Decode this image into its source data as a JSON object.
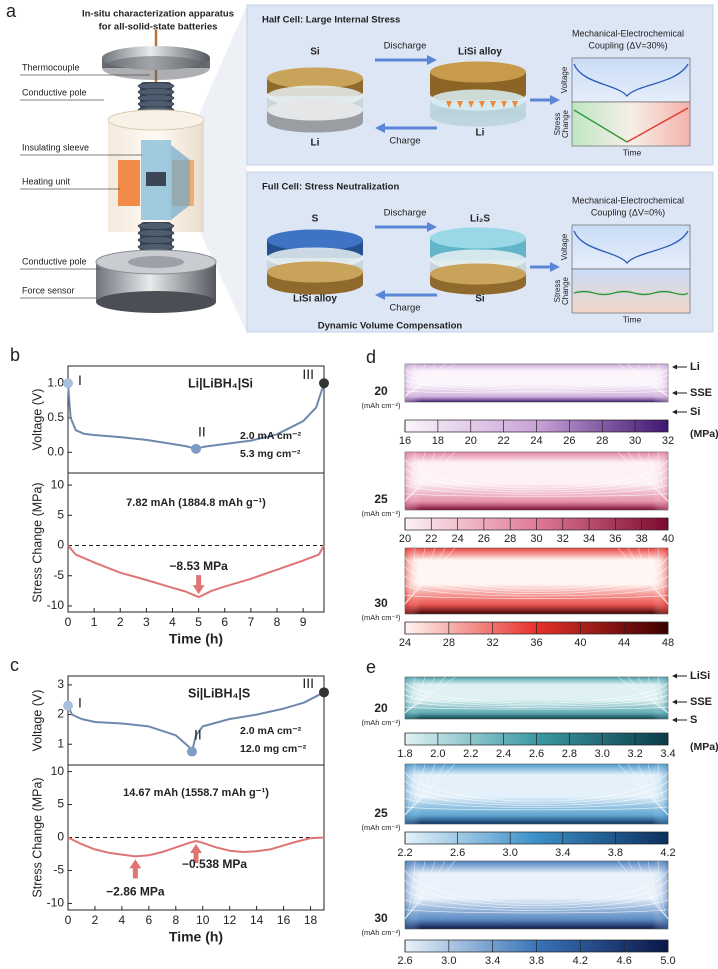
{
  "panel_a": {
    "label": "a",
    "title_lines": [
      "In-situ characterization apparatus",
      "for all-solid-state batteries"
    ],
    "parts": [
      "Thermocouple",
      "Conductive pole",
      "Insulating sleeve",
      "Heating unit",
      "Conductive pole",
      "Force sensor"
    ],
    "half_cell": {
      "title": "Half Cell: Large Internal Stress",
      "before_top": "Si",
      "before_bottom": "Li",
      "after_top": "LiSi alloy",
      "after_bottom": "Li",
      "forward": "Discharge",
      "backward": "Charge",
      "coupling_lines": [
        "Mechanical-Electrochemical",
        "Coupling (ΔV=30%)"
      ],
      "y_top": "Voltage",
      "y_bottom_lines": [
        "Stress",
        "Change"
      ],
      "x_label": "Time"
    },
    "full_cell": {
      "title": "Full Cell: Stress Neutralization",
      "before_top": "S",
      "before_bottom": "LiSi alloy",
      "after_top": "Li₂S",
      "after_bottom": "Si",
      "forward": "Discharge",
      "backward": "Charge",
      "coupling_lines": [
        "Mechanical-Electrochemical",
        "Coupling (ΔV=0%)"
      ],
      "y_top": "Voltage",
      "y_bottom_lines": [
        "Stress",
        "Change"
      ],
      "x_label": "Time",
      "caption": "Dynamic Volume Compensation"
    }
  },
  "chart_data": [
    {
      "type": "line",
      "panel_label": "b",
      "y_label": "Voltage (V)",
      "annotations": [
        "Li|LiBH₄|Si",
        "2.0 mA cm⁻²",
        "5.3 mg cm⁻²"
      ],
      "x": [
        0,
        0.1,
        0.3,
        0.6,
        1,
        2,
        3,
        4,
        4.5,
        4.9,
        5.2,
        6,
        7,
        8,
        9,
        9.5,
        9.8
      ],
      "series": [
        {
          "color": "#6f89ad",
          "values": [
            1.0,
            0.5,
            0.32,
            0.27,
            0.25,
            0.22,
            0.18,
            0.12,
            0.09,
            0.05,
            0.08,
            0.12,
            0.17,
            0.26,
            0.45,
            0.65,
            1.0
          ]
        }
      ],
      "markers": [
        {
          "label": "I",
          "x": 0,
          "y": 1.0,
          "color": "#a9bfe0"
        },
        {
          "label": "II",
          "x": 4.9,
          "y": 0.05,
          "color": "#7f9cc4"
        },
        {
          "label": "III",
          "x": 9.8,
          "y": 1.0,
          "color": "#333333"
        }
      ],
      "xlim": [
        0,
        9.8
      ],
      "ylim": [
        -0.3,
        1.25
      ],
      "yticks": [
        {
          "value": 0,
          "label": "0.0"
        },
        0.5,
        {
          "value": 1,
          "label": "1.0"
        }
      ]
    },
    {
      "type": "line",
      "y_label": "Stress Change (MPa)",
      "x_label": "Time (h)",
      "annotations": [
        "7.82 mAh (1884.8 mAh g⁻¹)"
      ],
      "x": [
        0,
        0.3,
        1,
        2,
        3,
        4,
        4.5,
        5,
        5.5,
        6,
        7,
        8,
        9,
        9.6,
        9.8
      ],
      "series": [
        {
          "color": "#e07474",
          "values": [
            0,
            -1.5,
            -2.8,
            -4.5,
            -5.7,
            -7,
            -7.6,
            -8.53,
            -7.5,
            -6.8,
            -5.5,
            -4,
            -2.5,
            -1.5,
            0
          ]
        }
      ],
      "reference_line": 0,
      "point_labels": [
        {
          "x": 5,
          "y": -8.53,
          "label": "−8.53 MPa"
        }
      ],
      "xlim": [
        0,
        9.8
      ],
      "ylim": [
        -11,
        12
      ],
      "xticks": [
        0,
        1,
        2,
        3,
        4,
        5,
        6,
        7,
        8,
        9
      ],
      "yticks": [
        -10,
        -5,
        0,
        5,
        10
      ]
    },
    {
      "type": "line",
      "panel_label": "c",
      "y_label": "Voltage (V)",
      "annotations": [
        "Si|LiBH₄|S",
        "2.0 mA cm⁻²",
        "12.0 mg cm⁻²"
      ],
      "x": [
        0,
        0.3,
        1,
        2,
        4,
        6,
        8,
        9,
        9.2,
        9.5,
        10,
        12,
        14,
        16,
        17.5,
        19
      ],
      "series": [
        {
          "color": "#6f89ad",
          "values": [
            2.3,
            2.0,
            1.85,
            1.75,
            1.7,
            1.6,
            1.3,
            0.9,
            0.75,
            1.3,
            1.6,
            1.85,
            2.0,
            2.2,
            2.4,
            2.75
          ]
        }
      ],
      "markers": [
        {
          "label": "I",
          "x": 0,
          "y": 2.3,
          "color": "#a9bfe0"
        },
        {
          "label": "II",
          "x": 9.2,
          "y": 0.75,
          "color": "#7f9cc4"
        },
        {
          "label": "III",
          "x": 19,
          "y": 2.75,
          "color": "#333333"
        }
      ],
      "xlim": [
        0,
        19
      ],
      "ylim": [
        0.3,
        3.3
      ],
      "yticks": [
        1,
        2,
        3
      ]
    },
    {
      "type": "line",
      "y_label": "Stress Change (MPa)",
      "x_label": "Time (h)",
      "annotations": [
        "14.67 mAh (1558.7 mAh g⁻¹)"
      ],
      "x": [
        0,
        1,
        2,
        3,
        4,
        5,
        6,
        7,
        8,
        9,
        9.5,
        10,
        11,
        12,
        13,
        14,
        15,
        16,
        17,
        18,
        19
      ],
      "series": [
        {
          "color": "#e07474",
          "values": [
            0,
            -1,
            -1.8,
            -2.3,
            -2.6,
            -2.86,
            -2.7,
            -2.2,
            -1.5,
            -0.8,
            -0.538,
            -0.8,
            -1.5,
            -2,
            -2.2,
            -2.1,
            -1.8,
            -1.2,
            -0.6,
            -0.1,
            0
          ]
        }
      ],
      "reference_line": 0,
      "point_labels": [
        {
          "x": 5,
          "y": -2.86,
          "label": "−2.86 MPa"
        },
        {
          "x": 9.5,
          "y": -0.538,
          "label": "−0.538 MPa"
        }
      ],
      "xlim": [
        0,
        19
      ],
      "ylim": [
        -11,
        11
      ],
      "xticks": [
        0,
        2,
        4,
        6,
        8,
        10,
        12,
        14,
        16,
        18
      ],
      "yticks": [
        -10,
        -5,
        0,
        5,
        10
      ]
    }
  ],
  "panel_d": {
    "label": "d",
    "layer_labels": [
      "Li",
      "SSE",
      "Si"
    ],
    "unit": "(MPa)",
    "maps": [
      {
        "loading": 20,
        "loading_unit": "(mAh cm⁻²)",
        "colormap": [
          "#fbf4fb",
          "#c9a3d6",
          "#3d1670"
        ],
        "ticks": [
          16,
          18,
          20,
          22,
          24,
          26,
          28,
          30,
          32
        ]
      },
      {
        "loading": 25,
        "loading_unit": "(mAh cm⁻²)",
        "colormap": [
          "#fdf1f4",
          "#e07a98",
          "#7c0a2e"
        ],
        "ticks": [
          20,
          22,
          24,
          26,
          28,
          30,
          32,
          34,
          36,
          38,
          40
        ]
      },
      {
        "loading": 30,
        "loading_unit": "(mAh cm⁻²)",
        "colormap": [
          "#fff5f2",
          "#e8302a",
          "#3b0000"
        ],
        "ticks": [
          24,
          28,
          32,
          36,
          40,
          44,
          48
        ]
      }
    ]
  },
  "panel_e": {
    "label": "e",
    "layer_labels": [
      "LiSi",
      "SSE",
      "S"
    ],
    "unit": "(MPa)",
    "maps": [
      {
        "loading": 20,
        "loading_unit": "(mAh cm⁻²)",
        "colormap": [
          "#dff1f3",
          "#3c9aa4",
          "#0a3c48"
        ],
        "ticks": [
          1.8,
          {
            "value": 2,
            "label": "2.0"
          },
          2.2,
          2.4,
          2.6,
          2.8,
          {
            "value": 3,
            "label": "3.0"
          },
          3.2,
          3.4
        ]
      },
      {
        "loading": 25,
        "loading_unit": "(mAh cm⁻²)",
        "colormap": [
          "#e4f1fa",
          "#3b90c8",
          "#0c2f5e"
        ],
        "ticks": [
          2.2,
          2.6,
          {
            "value": 3,
            "label": "3.0"
          },
          3.4,
          3.8,
          4.2
        ]
      },
      {
        "loading": 30,
        "loading_unit": "(mAh cm⁻²)",
        "colormap": [
          "#e9f1fa",
          "#3a74b8",
          "#0a1648"
        ],
        "ticks": [
          2.6,
          {
            "value": 3,
            "label": "3.0"
          },
          3.4,
          3.8,
          4.2,
          4.6,
          {
            "value": 5,
            "label": "5.0"
          }
        ]
      }
    ]
  }
}
